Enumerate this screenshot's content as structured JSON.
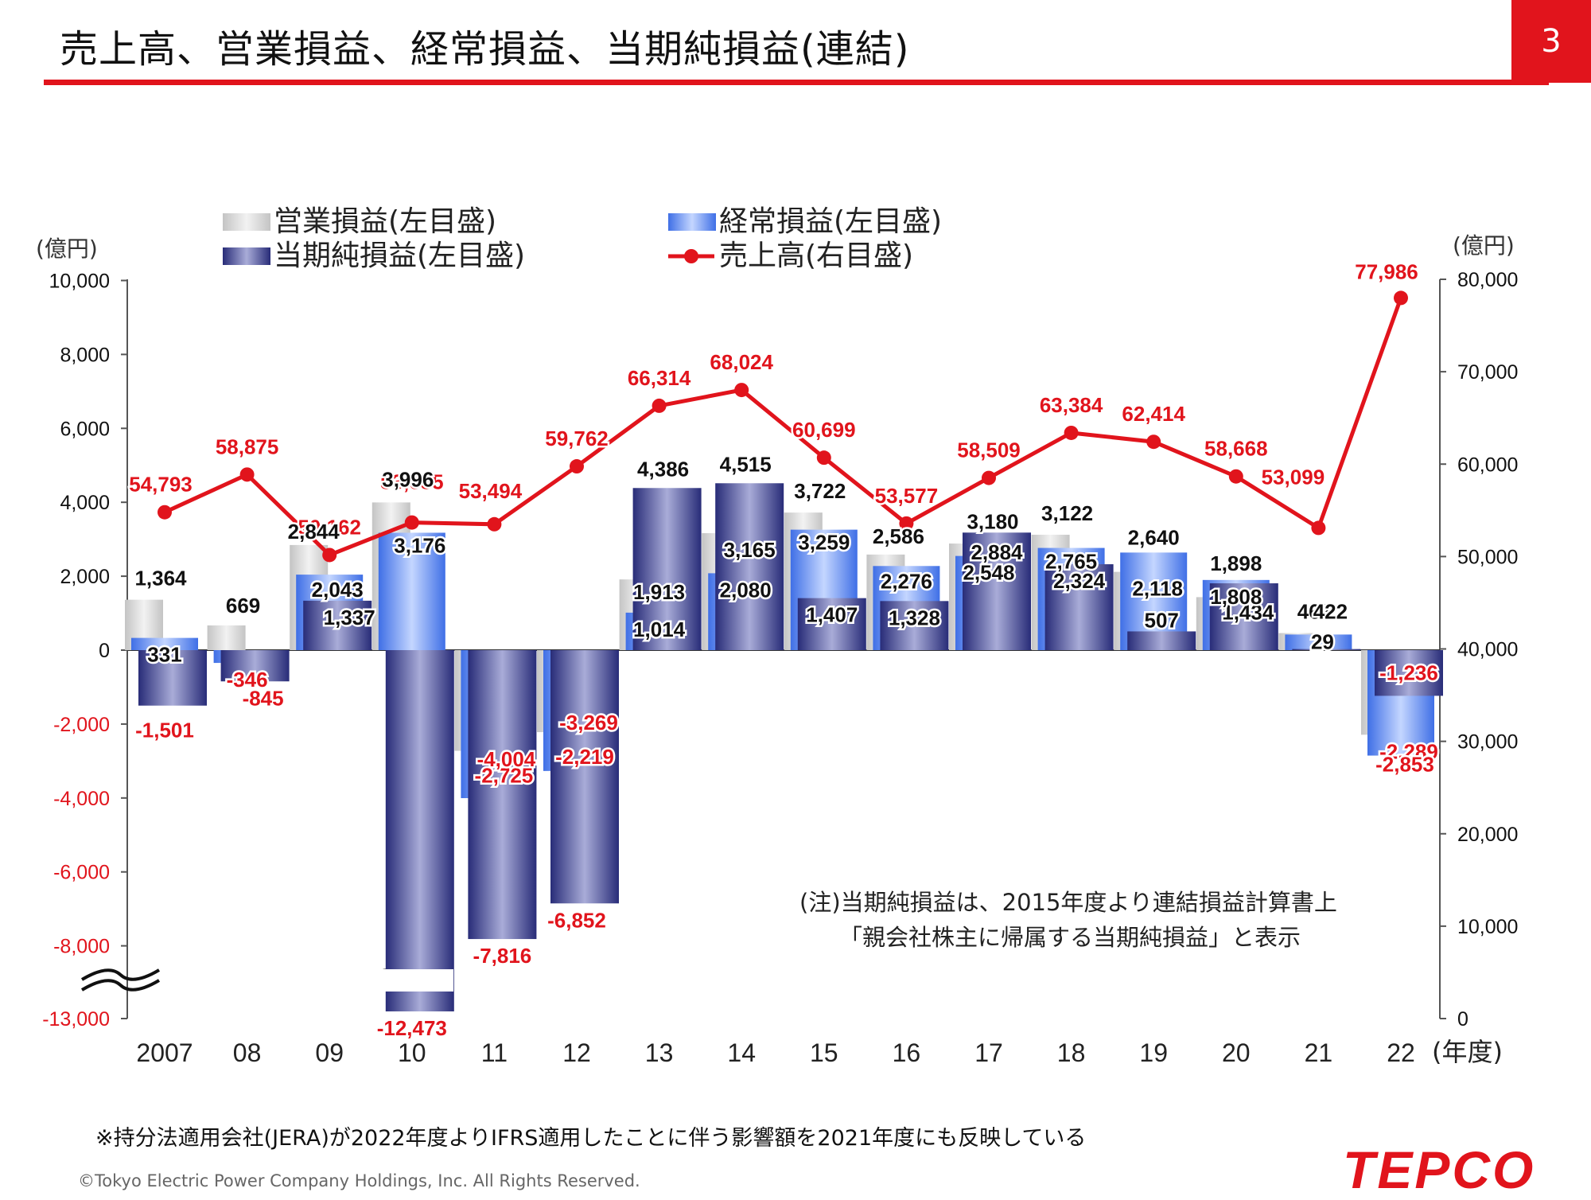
{
  "title": "売上高、営業損益、経常損益、当期純損益(連結)",
  "page_number": "3",
  "note_lines": [
    "(注)当期純損益は、2015年度より連結損益計算書上",
    "「親会社株主に帰属する当期純損益」と表示"
  ],
  "footnote": "※持分法適用会社(JERA)が2022年度よりIFRS適用したことに伴う影響額を2021年度にも反映している",
  "copyright": "©Tokyo Electric Power Company Holdings, Inc. All Rights Reserved.",
  "logo": "TEPCO",
  "colors": {
    "accent": "#e1141c",
    "operating": "#c8c8c8",
    "ordinary": "#5b86f0",
    "net": "#34388a",
    "sales": "#e1141c"
  },
  "chart_data": {
    "type": "bar",
    "categories": [
      "2007",
      "08",
      "09",
      "10",
      "11",
      "12",
      "13",
      "14",
      "15",
      "16",
      "17",
      "18",
      "19",
      "20",
      "21",
      "22"
    ],
    "x_unit": "(年度)",
    "y_left": {
      "unit": "(億円)",
      "ticks": [
        "10,000",
        "8,000",
        "6,000",
        "4,000",
        "2,000",
        "0",
        "-2,000",
        "-4,000",
        "-6,000",
        "-8,000",
        "-13,000"
      ],
      "axis_break": true
    },
    "y_right": {
      "unit": "(億円)",
      "ticks": [
        "80,000",
        "70,000",
        "60,000",
        "50,000",
        "40,000",
        "30,000",
        "20,000",
        "10,000",
        "0"
      ],
      "ylim": [
        0,
        80000
      ]
    },
    "series": [
      {
        "name": "営業損益(左目盛)",
        "type": "bar",
        "axis": "left",
        "values": [
          1364,
          669,
          2844,
          3996,
          -2725,
          -2219,
          1913,
          3165,
          3722,
          2586,
          2884,
          3122,
          2118,
          1434,
          462,
          -2289
        ],
        "labels": [
          "1,364",
          "669",
          "2,844",
          "3,996",
          "-2,725",
          "-2,219",
          "1,913",
          "3,165",
          "3,722",
          "2,586",
          "2,884",
          "3,122",
          "2,118",
          "1,434",
          "462",
          "-2,289"
        ]
      },
      {
        "name": "経常損益(左目盛)",
        "type": "bar",
        "axis": "left",
        "values": [
          331,
          -346,
          2043,
          3176,
          -4004,
          -3269,
          1014,
          2080,
          3259,
          2276,
          2548,
          2765,
          2640,
          1898,
          422,
          -2853
        ],
        "labels": [
          "331",
          "-346",
          "2,043",
          "3,176",
          "-4,004",
          "-3,269",
          "1,014",
          "2,080",
          "3,259",
          "2,276",
          "2,548",
          "2,765",
          "2,640",
          "1,898",
          "422",
          "-2,853"
        ]
      },
      {
        "name": "当期純損益(左目盛)",
        "type": "bar",
        "axis": "left",
        "values": [
          -1501,
          -845,
          1337,
          -12473,
          -7816,
          -6852,
          4386,
          4515,
          1407,
          1328,
          3180,
          2324,
          507,
          1808,
          29,
          -1236
        ],
        "labels": [
          "-1,501",
          "-845",
          "1,337",
          "-12,473",
          "-7,816",
          "-6,852",
          "4,386",
          "4,515",
          "1,407",
          "1,328",
          "3,180",
          "2,324",
          "507",
          "1,808",
          "29",
          "-1,236"
        ]
      },
      {
        "name": "売上高(右目盛)",
        "type": "line",
        "axis": "right",
        "values": [
          54793,
          58875,
          50162,
          53685,
          53494,
          59762,
          66314,
          68024,
          60699,
          53577,
          58509,
          63384,
          62414,
          58668,
          53099,
          77986
        ],
        "labels": [
          "54,793",
          "58,875",
          "50,162",
          "53,685",
          "53,494",
          "59,762",
          "66,314",
          "68,024",
          "60,699",
          "53,577",
          "58,509",
          "63,384",
          "62,414",
          "58,668",
          "53,099",
          "77,986"
        ]
      }
    ]
  }
}
